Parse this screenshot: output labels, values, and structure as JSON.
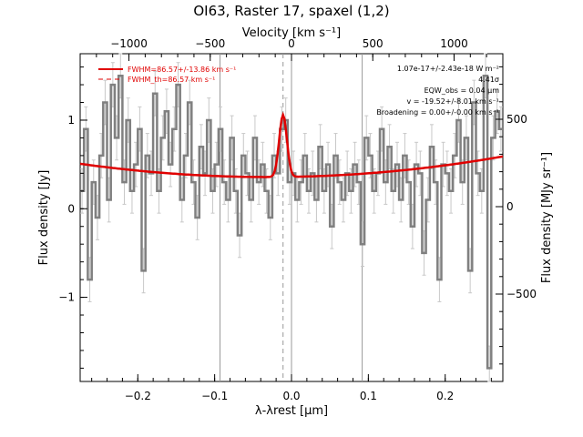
{
  "chart_data": {
    "type": "line",
    "title": "OI63, Raster 17, spaxel (1,2)",
    "xlabel": "λ-λrest [μm]",
    "ylabel": "Flux density [Jy]",
    "top_axis_label": "Velocity [km s⁻¹]",
    "right_axis_label": "Flux density [MJy sr⁻¹]",
    "xlim": [
      -0.275,
      0.275
    ],
    "ylim": [
      -1.95,
      1.75
    ],
    "top_xlim": [
      -1300,
      1300
    ],
    "right_ylim": [
      -1000,
      875
    ],
    "x_ticks": [
      -0.2,
      -0.1,
      0.0,
      0.1,
      0.2
    ],
    "x_tick_labels": [
      "−0.2",
      "−0.1",
      "0.0",
      "0.1",
      "0.2"
    ],
    "y_ticks": [
      -1,
      0,
      1
    ],
    "y_tick_labels": [
      "−1",
      "0",
      "1"
    ],
    "top_ticks": [
      -1000,
      -500,
      0,
      500,
      1000
    ],
    "top_tick_labels": [
      "−1000",
      "−500",
      "0",
      "500",
      "1000"
    ],
    "right_ticks": [
      -500,
      0,
      500
    ],
    "right_tick_labels": [
      "−500",
      "0",
      "500"
    ],
    "vertical_lines": [
      -0.093,
      0.0,
      0.092
    ],
    "line_center_marker": -0.011,
    "legend": [
      {
        "label": "FWHM=86.57+/-13.86 km s⁻¹",
        "style": "solid",
        "color": "#e00000"
      },
      {
        "label": "FWHM_th=86.57 km s⁻¹",
        "style": "dashed",
        "color": "#e00000"
      }
    ],
    "annotations": [
      "1.07e-17+/-2.43e-18 W m⁻²",
      "4.41σ",
      "EQW_obs = 0.04 μm",
      "v = -19.52+/-8.01 km s⁻¹",
      "Broadening = 0.00+/-0.00 km s⁻¹"
    ],
    "fit": {
      "baseline_coeffs": [
        0.36,
        0.15,
        2.5
      ],
      "gauss_amp": 0.7,
      "gauss_center": -0.011,
      "gauss_sigma": 0.005
    },
    "series": [
      {
        "kind": "spectrum",
        "color": "#808080",
        "x": [
          -0.275,
          -0.27,
          -0.265,
          -0.26,
          -0.255,
          -0.25,
          -0.245,
          -0.24,
          -0.235,
          -0.23,
          -0.225,
          -0.22,
          -0.215,
          -0.21,
          -0.205,
          -0.2,
          -0.195,
          -0.19,
          -0.185,
          -0.18,
          -0.175,
          -0.17,
          -0.165,
          -0.16,
          -0.155,
          -0.15,
          -0.145,
          -0.14,
          -0.135,
          -0.13,
          -0.125,
          -0.12,
          -0.115,
          -0.11,
          -0.105,
          -0.1,
          -0.095,
          -0.09,
          -0.085,
          -0.08,
          -0.075,
          -0.07,
          -0.065,
          -0.06,
          -0.055,
          -0.05,
          -0.045,
          -0.04,
          -0.035,
          -0.03,
          -0.025,
          -0.02,
          -0.015,
          -0.01,
          -0.005,
          0.0,
          0.005,
          0.01,
          0.015,
          0.02,
          0.025,
          0.03,
          0.035,
          0.04,
          0.045,
          0.05,
          0.055,
          0.06,
          0.065,
          0.07,
          0.075,
          0.08,
          0.085,
          0.09,
          0.095,
          0.1,
          0.105,
          0.11,
          0.115,
          0.12,
          0.125,
          0.13,
          0.135,
          0.14,
          0.145,
          0.15,
          0.155,
          0.16,
          0.165,
          0.17,
          0.175,
          0.18,
          0.185,
          0.19,
          0.195,
          0.2,
          0.205,
          0.21,
          0.215,
          0.22,
          0.225,
          0.23,
          0.235,
          0.24,
          0.245,
          0.25,
          0.255,
          0.26,
          0.265,
          0.27
        ],
        "y": [
          0.2,
          0.9,
          -0.8,
          0.3,
          -0.1,
          0.6,
          1.2,
          0.1,
          1.4,
          0.8,
          1.5,
          0.3,
          1.0,
          0.2,
          0.5,
          0.9,
          -0.7,
          0.6,
          0.4,
          1.3,
          0.2,
          0.8,
          1.1,
          0.5,
          0.9,
          1.4,
          0.1,
          0.6,
          1.2,
          0.3,
          -0.1,
          0.7,
          0.4,
          1.0,
          0.2,
          0.5,
          0.9,
          0.3,
          0.1,
          0.8,
          0.2,
          -0.3,
          0.6,
          0.4,
          0.1,
          0.8,
          0.3,
          0.5,
          0.2,
          -0.1,
          0.6,
          0.4,
          0.9,
          1.0,
          0.3,
          0.4,
          0.1,
          0.3,
          0.6,
          0.2,
          0.4,
          0.1,
          0.7,
          0.2,
          0.5,
          -0.2,
          0.6,
          0.3,
          0.1,
          0.4,
          0.2,
          0.5,
          0.3,
          -0.4,
          0.8,
          0.6,
          0.2,
          0.4,
          0.9,
          0.3,
          0.7,
          0.2,
          0.5,
          0.1,
          0.6,
          0.3,
          -0.2,
          0.5,
          0.4,
          -0.5,
          0.1,
          0.7,
          0.3,
          -0.8,
          0.5,
          0.4,
          0.2,
          0.6,
          1.0,
          0.3,
          0.8,
          -0.7,
          1.2,
          0.4,
          0.2,
          1.5,
          -1.8,
          0.8,
          1.1,
          0.9
        ],
        "err": 0.25
      },
      {
        "kind": "fit",
        "color": "#e00000",
        "style": "solid"
      }
    ]
  }
}
